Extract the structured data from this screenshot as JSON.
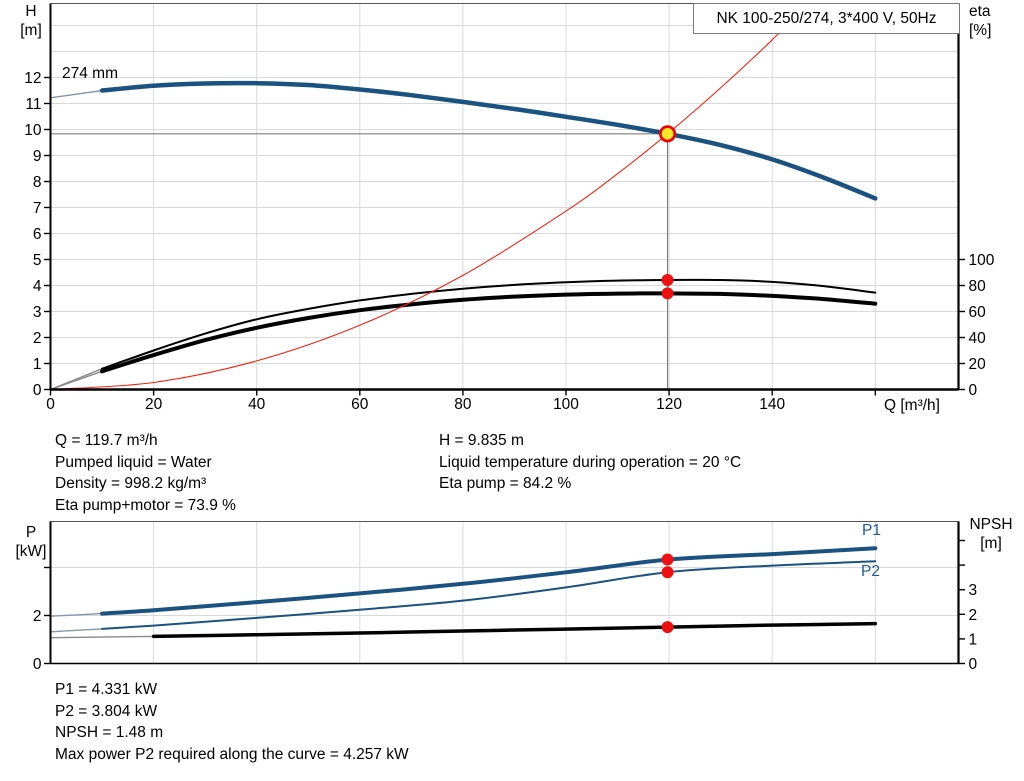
{
  "title_box": {
    "text": "NK 100-250/274, 3*400 V, 50Hz"
  },
  "colors": {
    "curve_blue": "#1a5280",
    "curve_black": "#000000",
    "curve_red": "#f02311",
    "dot_red": "#ee1111",
    "duty_fill": "#ffe926",
    "duty_ring": "#f00000",
    "thin_blue": "#8497ad",
    "thin_gray": "#8a8a8a",
    "grid": "#d9d9d9",
    "crosshair": "#7f7f7f",
    "axis": "#000000",
    "border_soft": "#555555",
    "label_blue": "#1f5c8f"
  },
  "top_chart": {
    "y1_unit": [
      "H",
      "[m]"
    ],
    "y2_unit": [
      "eta",
      "[%]"
    ],
    "x_unit": "Q [m³/h]",
    "curve_label": "274 mm"
  },
  "bottom_chart": {
    "y1_unit": [
      "P",
      "[kW]"
    ],
    "y2_unit": [
      "NPSH",
      "[m]"
    ],
    "p1_label": "P1",
    "p2_label": "P2"
  },
  "annotations": {
    "mid_left": [
      "Q = 119.7 m³/h",
      "Pumped liquid = Water",
      "Density = 998.2 kg/m³",
      "Eta pump+motor = 73.9 %"
    ],
    "mid_right": [
      "H = 9.835 m",
      "Liquid temperature during operation = 20 °C",
      "Eta pump = 84.2 %"
    ],
    "bottom": [
      "P1 = 4.331 kW",
      "P2 = 3.804 kW",
      "NPSH = 1.48 m",
      "Max power P2 required along the curve = 4.257 kW"
    ]
  },
  "chart_data": [
    {
      "type": "line",
      "title": "NK 100-250/274, 3*400 V, 50Hz",
      "xlabel": "Q [m³/h]",
      "ylabel": "H [m]",
      "y2label": "eta [%]",
      "xlim": [
        0,
        176
      ],
      "ylim": [
        0,
        14.85
      ],
      "y2lim": [
        0,
        100
      ],
      "y2_note": "eta 0-100 % spans H 0-5 m on shared plot",
      "grid": true,
      "xticks": [
        0,
        20,
        40,
        60,
        80,
        100,
        120,
        140,
        160
      ],
      "xtick_labels": [
        "0",
        "20",
        "40",
        "60",
        "80",
        "100",
        "120",
        "140",
        ""
      ],
      "yticks": [
        0,
        1,
        2,
        3,
        4,
        5,
        6,
        7,
        8,
        9,
        10,
        11,
        12
      ],
      "ytick_labels": [
        "0",
        "1",
        "2",
        "3",
        "4",
        "5",
        "6",
        "7",
        "8",
        "9",
        "10",
        "11",
        "12"
      ],
      "y2ticks": [
        0,
        20,
        40,
        60,
        80,
        100
      ],
      "y2tick_labels": [
        "0",
        "20",
        "40",
        "60",
        "80",
        "100"
      ],
      "grid_x": [
        20,
        40,
        60,
        80,
        100,
        120,
        140,
        160
      ],
      "grid_y": [
        1,
        2,
        3,
        4,
        5,
        6,
        7,
        8,
        9,
        10,
        11,
        12,
        13,
        14
      ],
      "series": [
        {
          "name": "274 mm",
          "axis": "y1",
          "color": "curve_blue",
          "width": 4.5,
          "thin_to": 10,
          "thin_color": "thin_blue",
          "points": [
            [
              0,
              11.22
            ],
            [
              10,
              11.5
            ],
            [
              20,
              11.68
            ],
            [
              30,
              11.77
            ],
            [
              40,
              11.78
            ],
            [
              50,
              11.71
            ],
            [
              60,
              11.54
            ],
            [
              70,
              11.32
            ],
            [
              80,
              11.06
            ],
            [
              90,
              10.79
            ],
            [
              100,
              10.49
            ],
            [
              110,
              10.18
            ],
            [
              119.7,
              9.835
            ],
            [
              130,
              9.4
            ],
            [
              140,
              8.85
            ],
            [
              150,
              8.15
            ],
            [
              160,
              7.35
            ]
          ]
        },
        {
          "name": "eta pump",
          "axis": "y2",
          "color": "curve_black",
          "width": 2,
          "thin_to": 10,
          "thin_color": "thin_gray",
          "points": [
            [
              0,
              0
            ],
            [
              10,
              16
            ],
            [
              20,
              30
            ],
            [
              30,
              43
            ],
            [
              40,
              54
            ],
            [
              50,
              62
            ],
            [
              60,
              68.5
            ],
            [
              70,
              73.5
            ],
            [
              80,
              77.5
            ],
            [
              90,
              80.5
            ],
            [
              100,
              82.5
            ],
            [
              110,
              83.8
            ],
            [
              119.7,
              84.2
            ],
            [
              130,
              84.2
            ],
            [
              140,
              82.8
            ],
            [
              150,
              79.5
            ],
            [
              160,
              74.5
            ]
          ]
        },
        {
          "name": "eta pump+motor",
          "axis": "y2",
          "color": "curve_black",
          "width": 4,
          "thin_to": 10,
          "thin_color": "thin_gray",
          "points": [
            [
              0,
              0
            ],
            [
              10,
              14
            ],
            [
              20,
              26.5
            ],
            [
              30,
              38
            ],
            [
              40,
              47.5
            ],
            [
              50,
              55
            ],
            [
              60,
              61
            ],
            [
              70,
              65.5
            ],
            [
              80,
              69
            ],
            [
              90,
              71.5
            ],
            [
              100,
              73
            ],
            [
              110,
              73.8
            ],
            [
              119.7,
              73.9
            ],
            [
              130,
              73.5
            ],
            [
              140,
              72
            ],
            [
              150,
              69.5
            ],
            [
              160,
              66
            ]
          ]
        },
        {
          "name": "system curve",
          "axis": "y1",
          "color": "curve_red",
          "width": 1.1,
          "points": [
            [
              0,
              0
            ],
            [
              20,
              0.27
            ],
            [
              40,
              1.1
            ],
            [
              60,
              2.47
            ],
            [
              80,
              4.39
            ],
            [
              100,
              6.86
            ],
            [
              110,
              8.3
            ],
            [
              119.7,
              9.835
            ],
            [
              130,
              11.6
            ],
            [
              140,
              13.45
            ],
            [
              146.6,
              14.8
            ]
          ]
        }
      ],
      "crosshair": {
        "q": 119.7,
        "h": 9.835
      },
      "markers": [
        {
          "q": 119.7,
          "axis": "y1",
          "v": 9.835,
          "type": "duty"
        },
        {
          "q": 119.7,
          "axis": "y2",
          "v": 84.2,
          "type": "dot"
        },
        {
          "q": 119.7,
          "axis": "y2",
          "v": 73.9,
          "type": "dot"
        }
      ]
    },
    {
      "type": "line",
      "title": "",
      "xlabel": "",
      "ylabel": "P [kW]",
      "y2label": "NPSH [m]",
      "xlim": [
        0,
        176
      ],
      "ylim": [
        0,
        5.92
      ],
      "y2lim": [
        0,
        5.77
      ],
      "grid": true,
      "xticks": [],
      "xtick_labels": [],
      "yticks": [
        0,
        2,
        4
      ],
      "ytick_labels": [
        "0",
        "2",
        ""
      ],
      "y2ticks": [
        0,
        1,
        2,
        3,
        4,
        5
      ],
      "y2tick_labels": [
        "0",
        "1",
        "2",
        "3",
        "",
        ""
      ],
      "grid_x": [
        20,
        40,
        60,
        80,
        100,
        120,
        140,
        160
      ],
      "grid_y": [
        2,
        4
      ],
      "series": [
        {
          "name": "P1",
          "axis": "y1",
          "color": "curve_blue",
          "width": 4,
          "thin_to": 10,
          "thin_color": "thin_blue",
          "points": [
            [
              0,
              1.97
            ],
            [
              10,
              2.08
            ],
            [
              20,
              2.22
            ],
            [
              40,
              2.56
            ],
            [
              60,
              2.92
            ],
            [
              80,
              3.32
            ],
            [
              100,
              3.8
            ],
            [
              119.7,
              4.331
            ],
            [
              140,
              4.56
            ],
            [
              160,
              4.8
            ]
          ]
        },
        {
          "name": "P2",
          "axis": "y1",
          "color": "curve_blue",
          "width": 2,
          "thin_to": 10,
          "thin_color": "thin_blue",
          "points": [
            [
              0,
              1.32
            ],
            [
              10,
              1.44
            ],
            [
              20,
              1.58
            ],
            [
              40,
              1.9
            ],
            [
              60,
              2.24
            ],
            [
              80,
              2.62
            ],
            [
              100,
              3.17
            ],
            [
              119.7,
              3.804
            ],
            [
              140,
              4.08
            ],
            [
              160,
              4.26
            ]
          ]
        },
        {
          "name": "NPSH",
          "axis": "y2",
          "color": "curve_black",
          "width": 3.5,
          "thin_to": 10,
          "thin_color": "thin_gray",
          "points": [
            [
              0,
              1.05
            ],
            [
              20,
              1.1
            ],
            [
              40,
              1.17
            ],
            [
              60,
              1.24
            ],
            [
              80,
              1.32
            ],
            [
              100,
              1.4
            ],
            [
              119.7,
              1.48
            ],
            [
              140,
              1.56
            ],
            [
              160,
              1.62
            ]
          ]
        }
      ],
      "markers": [
        {
          "q": 119.7,
          "axis": "y1",
          "v": 4.331,
          "type": "dot"
        },
        {
          "q": 119.7,
          "axis": "y1",
          "v": 3.804,
          "type": "dot"
        },
        {
          "q": 119.7,
          "axis": "y2",
          "v": 1.48,
          "type": "dot"
        }
      ]
    }
  ]
}
